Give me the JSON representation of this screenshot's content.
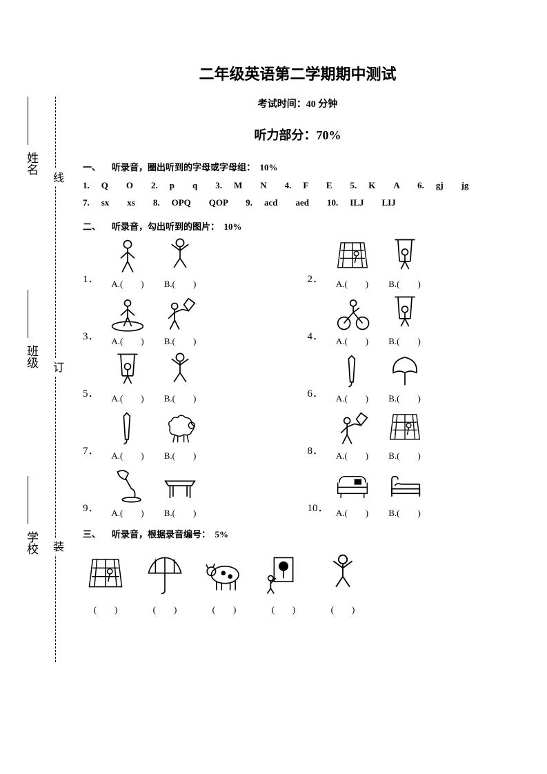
{
  "title": "二年级英语第二学期期中测试",
  "subtitle": "考试时间：40 分钟",
  "section_title": "听力部分：70%",
  "binding": {
    "labels": [
      "姓名",
      "班级",
      "学校"
    ],
    "marks": [
      "线",
      "订",
      "装"
    ]
  },
  "s1": {
    "num": "一、",
    "title": "听录音，圈出听到的字母或字母组：",
    "pct": "10%",
    "rows": [
      [
        {
          "n": "1.",
          "a": "Q",
          "b": "O"
        },
        {
          "n": "2.",
          "a": "p",
          "b": "q"
        },
        {
          "n": "3.",
          "a": "M",
          "b": "N"
        },
        {
          "n": "4.",
          "a": "F",
          "b": "E"
        },
        {
          "n": "5.",
          "a": "K",
          "b": "A"
        },
        {
          "n": "6.",
          "a": "gj",
          "b": "jg"
        }
      ],
      [
        {
          "n": "7.",
          "a": "sx",
          "b": "xs"
        },
        {
          "n": "8.",
          "a": "OPQ",
          "b": "QOP"
        },
        {
          "n": "9.",
          "a": "acd",
          "b": "aed"
        },
        {
          "n": "10.",
          "a": "ILJ",
          "b": "LIJ"
        }
      ]
    ]
  },
  "s2": {
    "num": "二、",
    "title": "听录音，勾出听到的图片：",
    "pct": "10%",
    "opts": [
      "A.(　　)",
      "B.(　　)"
    ],
    "items": [
      "1．",
      "2．",
      "3．",
      "4．",
      "5．",
      "6．",
      "7．",
      "8．",
      "9．",
      "10．"
    ]
  },
  "s3": {
    "num": "三、",
    "title": "听录音，根据录音编号：",
    "pct": "5%",
    "blank": "(　　)",
    "count": 5
  }
}
